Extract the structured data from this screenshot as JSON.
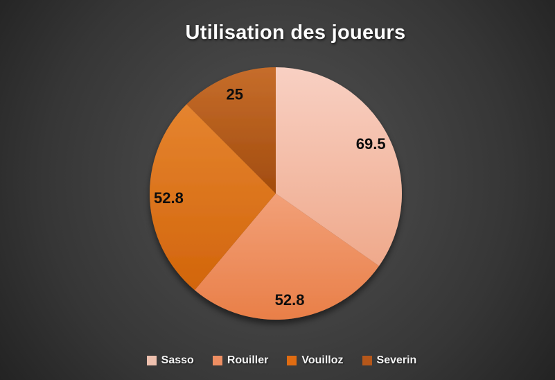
{
  "chart_data": {
    "type": "pie",
    "title": "Utilisation des joueurs",
    "categories": [
      "Sasso",
      "Rouiller",
      "Vouilloz",
      "Severin"
    ],
    "values": [
      69.5,
      52.8,
      52.8,
      25
    ],
    "data_labels": [
      "69.5",
      "52.8",
      "52.8",
      "25"
    ],
    "direction": "clockwise",
    "start_angle_deg": 0,
    "legend_position": "bottom",
    "slice_gradients": [
      {
        "top": "#f8d0c3",
        "bottom": "#efa98b"
      },
      {
        "top": "#f2a078",
        "bottom": "#e97f48"
      },
      {
        "top": "#e5842f",
        "bottom": "#d2650b"
      },
      {
        "top": "#c66d2b",
        "bottom": "#a24c0e"
      }
    ],
    "legend_swatch_colors": [
      "#eec0ae",
      "#ee8e62",
      "#e06c12",
      "#b5571a"
    ],
    "label_color": "#0d0d0d",
    "title_color": "#fdfdfd"
  },
  "canvas": {
    "background_center_color": "#4b4b4b",
    "background_edge_color": "#242424"
  }
}
